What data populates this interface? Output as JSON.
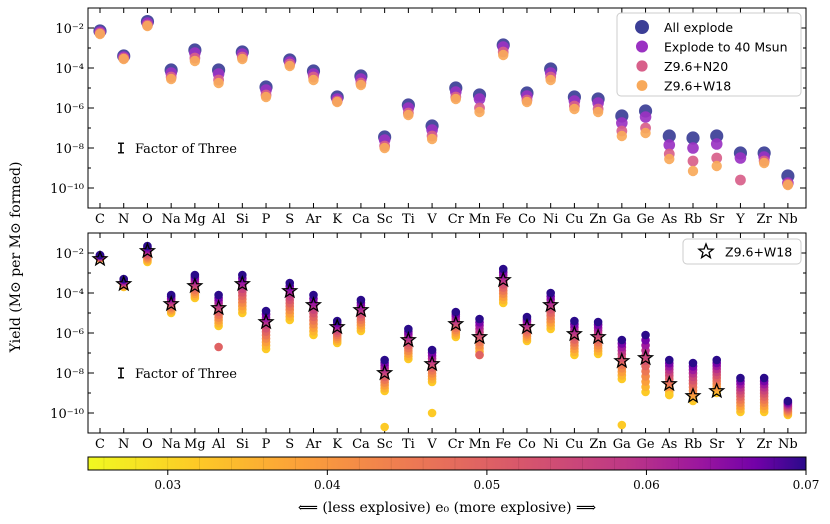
{
  "chart_data": {
    "type": "scatter",
    "ylabel": "Yield (M⊙ per M⊙ formed)",
    "elements": [
      "C",
      "N",
      "O",
      "Na",
      "Mg",
      "Al",
      "Si",
      "P",
      "S",
      "Ar",
      "K",
      "Ca",
      "Sc",
      "Ti",
      "V",
      "Cr",
      "Mn",
      "Fe",
      "Co",
      "Ni",
      "Cu",
      "Zn",
      "Ga",
      "Ge",
      "As",
      "Rb",
      "Sr",
      "Y",
      "Zr",
      "Nb"
    ],
    "yscale": "log",
    "ylim": [
      1e-11,
      0.1
    ],
    "ytick_labels": [
      {
        "v": -2,
        "text": "10⁻²"
      },
      {
        "v": -4,
        "text": "10⁻⁴"
      },
      {
        "v": -6,
        "text": "10⁻⁶"
      },
      {
        "v": -8,
        "text": "10⁻⁸"
      },
      {
        "v": -10,
        "text": "10⁻¹⁰"
      }
    ],
    "errorbar_label": "Factor of Three",
    "top_panel": {
      "legend_position": "top-right",
      "series": [
        {
          "name": "All explode",
          "color": "#3b3e96",
          "logy": [
            -2.15,
            -3.4,
            -1.68,
            -4.1,
            -3.1,
            -4.1,
            -3.2,
            -4.95,
            -3.6,
            -4.15,
            -5.45,
            -4.4,
            -7.45,
            -5.85,
            -6.9,
            -5.0,
            -5.35,
            -2.85,
            -5.25,
            -4.05,
            -5.45,
            -5.55,
            -6.4,
            -6.15,
            -7.4,
            -7.5,
            -7.4,
            -8.25,
            -8.25,
            -9.4
          ]
        },
        {
          "name": "Explode to 40 Msun",
          "color": "#9a32c2",
          "logy": [
            -2.2,
            -3.45,
            -1.75,
            -4.25,
            -3.25,
            -4.3,
            -3.3,
            -5.1,
            -3.7,
            -4.3,
            -5.55,
            -4.55,
            -7.6,
            -6.0,
            -7.1,
            -5.2,
            -5.55,
            -2.95,
            -5.4,
            -4.25,
            -5.65,
            -5.75,
            -6.75,
            -6.45,
            -7.85,
            -8.0,
            -7.8,
            -8.5,
            -8.45,
            -9.75
          ]
        },
        {
          "name": "Z9.6+N20",
          "color": "#d8608a",
          "logy": [
            -2.25,
            -3.5,
            -1.85,
            -4.45,
            -3.5,
            -4.6,
            -3.45,
            -5.35,
            -3.8,
            -4.45,
            -5.65,
            -4.75,
            -7.9,
            -6.25,
            -7.4,
            -5.45,
            -6.0,
            -3.2,
            -5.6,
            -4.45,
            -5.9,
            -6.05,
            -7.15,
            -7.0,
            -8.3,
            -8.65,
            -8.5,
            -9.6,
            -8.65,
            -9.8
          ]
        },
        {
          "name": "Z9.6+W18",
          "color": "#f8a95a",
          "logy": [
            -2.3,
            -3.55,
            -1.9,
            -4.55,
            -3.65,
            -4.75,
            -3.55,
            -5.45,
            -3.9,
            -4.6,
            -5.7,
            -4.85,
            -8.0,
            -6.35,
            -7.55,
            -5.55,
            -6.2,
            -3.35,
            -5.7,
            -4.6,
            -6.05,
            -6.2,
            -7.4,
            -7.25,
            -8.55,
            -9.15,
            -8.9,
            null,
            -8.75,
            -9.85
          ]
        }
      ]
    },
    "bottom_panel": {
      "legend_position": "top-right",
      "legend_entry": "Z9.6+W18",
      "highlight_logy": [
        -2.3,
        -3.55,
        -1.9,
        -4.55,
        -3.65,
        -4.75,
        -3.55,
        -5.45,
        -3.9,
        -4.6,
        -5.7,
        -4.85,
        -8.0,
        -6.35,
        -7.55,
        -5.55,
        -6.2,
        -3.35,
        -5.7,
        -4.6,
        -6.05,
        -6.2,
        -7.4,
        -7.25,
        -8.55,
        -9.15,
        -8.9,
        null,
        null,
        null
      ],
      "range_logy": [
        [
          -2.1,
          -2.3
        ],
        [
          -3.3,
          -3.7
        ],
        [
          -1.65,
          -2.45
        ],
        [
          -4.1,
          -5.0
        ],
        [
          -3.1,
          -4.25
        ],
        [
          -4.1,
          -6.7
        ],
        [
          -3.1,
          -5.0
        ],
        [
          -4.9,
          -6.8
        ],
        [
          -3.5,
          -5.35
        ],
        [
          -4.1,
          -6.1
        ],
        [
          -5.4,
          -6.5
        ],
        [
          -4.35,
          -5.9
        ],
        [
          -7.35,
          -10.7
        ],
        [
          -5.8,
          -7.3
        ],
        [
          -6.85,
          -10.0
        ],
        [
          -4.95,
          -6.2
        ],
        [
          -5.3,
          -7.1
        ],
        [
          -2.8,
          -4.5
        ],
        [
          -5.2,
          -6.4
        ],
        [
          -4.0,
          -5.8
        ],
        [
          -5.4,
          -7.1
        ],
        [
          -5.45,
          -7.05
        ],
        [
          -6.35,
          -10.6
        ],
        [
          -6.1,
          -8.95
        ],
        [
          -7.35,
          -9.1
        ],
        [
          -7.5,
          -9.4
        ],
        [
          -7.35,
          -9.0
        ],
        [
          -8.25,
          -9.95
        ],
        [
          -8.25,
          -9.95
        ],
        [
          -9.4,
          -10.1
        ]
      ],
      "outlier_logy": [
        null,
        null,
        null,
        null,
        null,
        -6.7,
        null,
        null,
        null,
        null,
        null,
        null,
        -10.7,
        null,
        -10.0,
        null,
        -7.1,
        null,
        null,
        null,
        null,
        null,
        -10.6,
        null,
        -9.1,
        null,
        null,
        null,
        null,
        null
      ]
    },
    "colorbar": {
      "label": "⟸ (less explosive) e₀ (more explosive) ⟹",
      "range": [
        0.025,
        0.07
      ],
      "tick_values": [
        0.03,
        0.04,
        0.05,
        0.06,
        0.07
      ],
      "tick_labels": [
        "0.03",
        "0.04",
        "0.05",
        "0.06",
        "0.07"
      ],
      "colormap": "plasma_r"
    }
  }
}
